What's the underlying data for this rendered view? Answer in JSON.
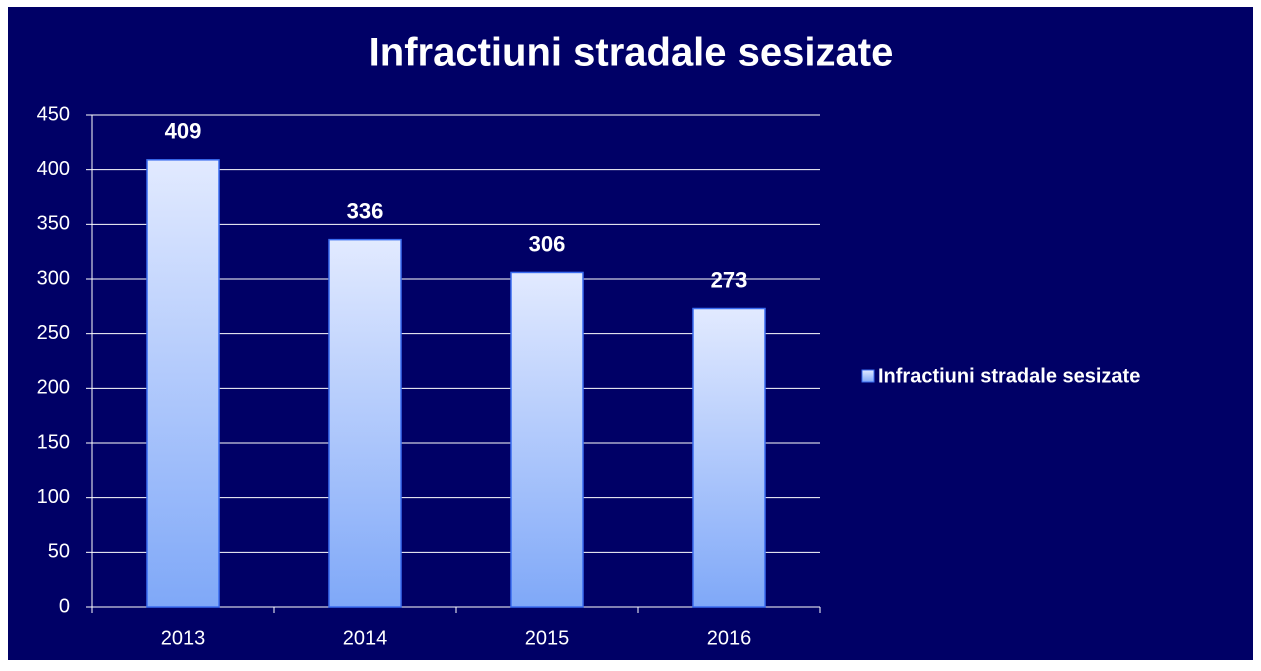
{
  "chart_data": {
    "type": "bar",
    "title": "Infractiuni stradale sesizate",
    "categories": [
      "2013",
      "2014",
      "2015",
      "2016"
    ],
    "series": [
      {
        "name": "Infractiuni stradale sesizate",
        "color": "#7fa8f8",
        "values": [
          409,
          336,
          306,
          273
        ]
      }
    ],
    "ylim": [
      0,
      450
    ],
    "yticks": [
      0,
      50,
      100,
      150,
      200,
      250,
      300,
      350,
      400,
      450
    ],
    "grid": true,
    "legend": "right",
    "data_labels": true
  }
}
